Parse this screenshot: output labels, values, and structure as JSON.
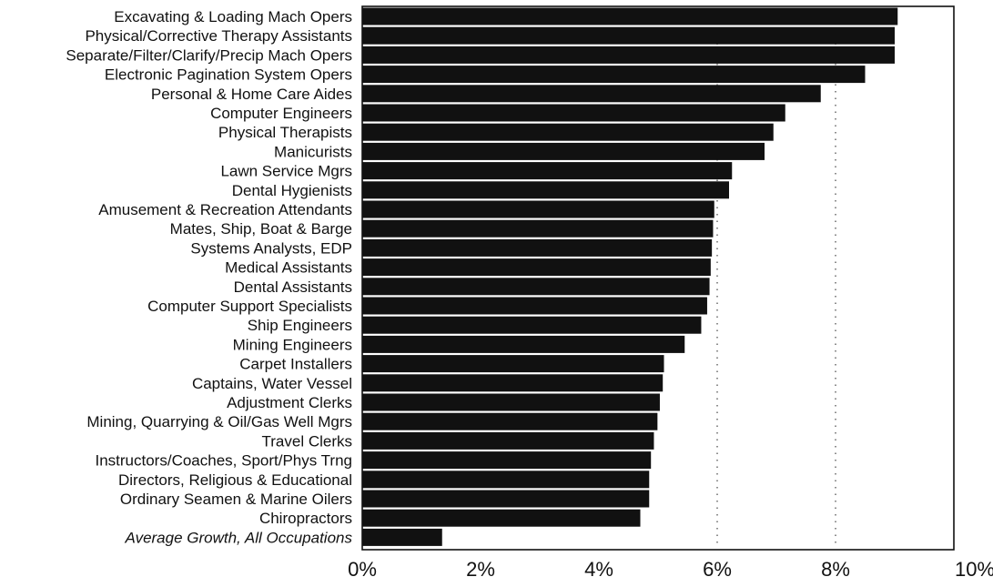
{
  "chart_data": {
    "type": "bar",
    "orientation": "horizontal",
    "title": "",
    "xlabel": "",
    "ylabel": "",
    "xlim": [
      0,
      10
    ],
    "x_ticks": [
      0,
      2,
      4,
      6,
      8,
      10
    ],
    "x_tick_labels": [
      "0%",
      "2%",
      "4%",
      "6%",
      "8%",
      "10%"
    ],
    "grid": "vertical dotted lines at 6% and 8%",
    "bar_color": "#111111",
    "categories": [
      "Excavating & Loading Mach Opers",
      "Physical/Corrective Therapy Assistants",
      "Separate/Filter/Clarify/Precip Mach Opers",
      "Electronic Pagination System Opers",
      "Personal & Home Care Aides",
      "Computer Engineers",
      "Physical Therapists",
      "Manicurists",
      "Lawn Service Mgrs",
      "Dental Hygienists",
      "Amusement & Recreation Attendants",
      "Mates, Ship, Boat & Barge",
      "Systems Analysts, EDP",
      "Medical Assistants",
      "Dental Assistants",
      "Computer Support Specialists",
      "Ship Engineers",
      "Mining Engineers",
      "Carpet Installers",
      "Captains, Water Vessel",
      "Adjustment Clerks",
      "Mining, Quarrying & Oil/Gas Well Mgrs",
      "Travel Clerks",
      "Instructors/Coaches, Sport/Phys Trng",
      "Directors, Religious & Educational",
      "Ordinary Seamen & Marine Oilers",
      "Chiropractors",
      "Average Growth, All Occupations"
    ],
    "values": [
      9.05,
      9.0,
      9.0,
      8.5,
      7.75,
      7.15,
      6.95,
      6.8,
      6.25,
      6.2,
      5.95,
      5.93,
      5.91,
      5.89,
      5.87,
      5.83,
      5.73,
      5.45,
      5.1,
      5.08,
      5.03,
      4.99,
      4.93,
      4.88,
      4.85,
      4.85,
      4.7,
      1.35
    ],
    "italic_categories": [
      "Average Growth, All Occupations"
    ]
  }
}
